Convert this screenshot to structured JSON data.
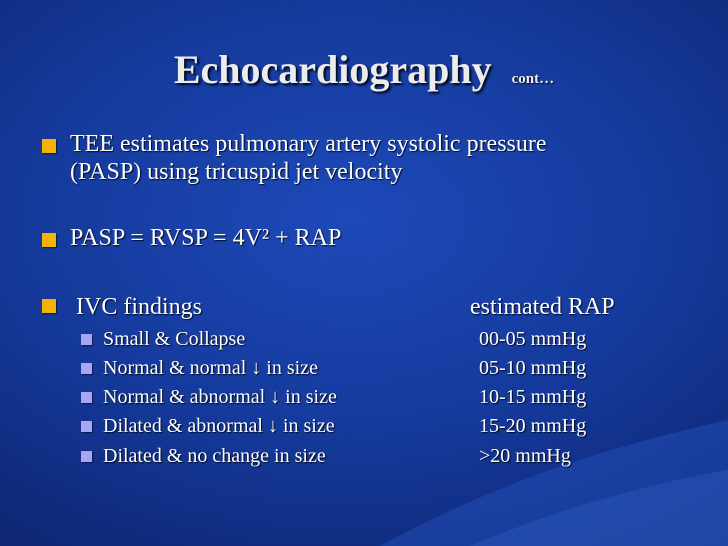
{
  "title": {
    "main": "Echocardiography",
    "sub": "cont…"
  },
  "bullets": [
    {
      "lines": [
        "TEE estimates pulmonary artery systolic pressure",
        "(PASP) using tricuspid jet velocity"
      ]
    },
    {
      "text": "PASP = RVSP = 4V² + RAP"
    },
    {
      "text": "IVC findings",
      "right_header": "estimated RAP"
    }
  ],
  "ivc_table": [
    {
      "finding": "Small & Collapse",
      "rap": "00-05 mmHg"
    },
    {
      "finding": "Normal & normal ↓ in size",
      "rap": "05-10 mmHg"
    },
    {
      "finding": "Normal & abnormal ↓ in size",
      "rap": "10-15 mmHg"
    },
    {
      "finding": "Dilated & abnormal ↓ in size",
      "rap": "15-20 mmHg"
    },
    {
      "finding": "Dilated & no change in size",
      "rap": ">20 mmHg"
    }
  ],
  "colors": {
    "background": "#153a9c",
    "main_bullet": "#f2b400",
    "sub_bullet": "#a6a6f2",
    "text": "#ffffff"
  }
}
